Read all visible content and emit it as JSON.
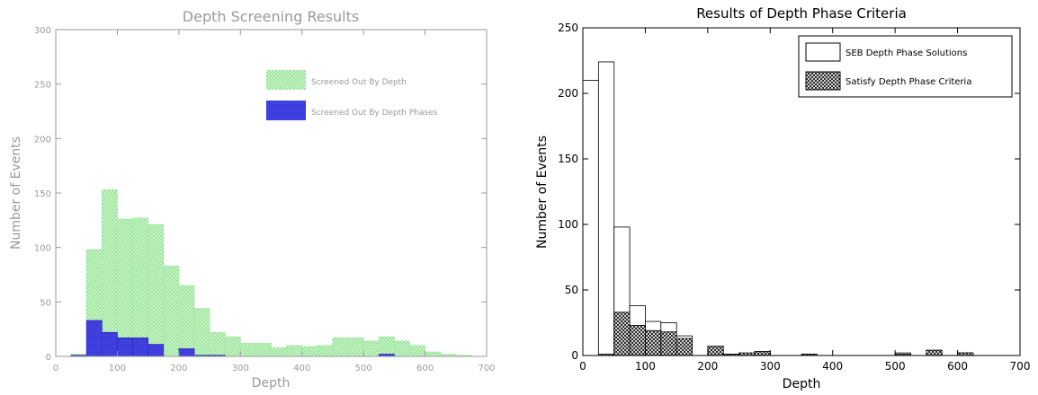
{
  "chart_data": [
    {
      "type": "bar",
      "title": "Depth Screening Results",
      "xlabel": "Depth",
      "ylabel": "Number of Events",
      "xlim": [
        0,
        700
      ],
      "ylim": [
        0,
        300
      ],
      "xticks": [
        "0",
        "100",
        "200",
        "300",
        "400",
        "500",
        "600",
        "700"
      ],
      "yticks": [
        "0",
        "50",
        "100",
        "150",
        "200",
        "250",
        "300"
      ],
      "bin_width": 25,
      "legend": {
        "title": "",
        "position": "top-right"
      },
      "colors": {
        "series1": "#7de07d",
        "series2": "#3b3bdc"
      },
      "series": [
        {
          "name": "Screened Out By Depth",
          "x_start": [
            25,
            50,
            75,
            100,
            125,
            150,
            175,
            200,
            225,
            250,
            275,
            300,
            325,
            350,
            375,
            400,
            425,
            450,
            475,
            500,
            525,
            550,
            575,
            600,
            625,
            650
          ],
          "values": [
            2,
            98,
            153,
            126,
            127,
            121,
            83,
            65,
            44,
            22,
            18,
            12,
            12,
            8,
            10,
            9,
            10,
            17,
            17,
            14,
            18,
            14,
            10,
            4,
            2,
            1
          ]
        },
        {
          "name": "Screened Out By Depth Phases",
          "x_start": [
            25,
            50,
            75,
            100,
            125,
            150,
            175,
            200,
            225,
            250,
            275,
            300,
            325,
            350,
            375,
            400,
            425,
            450,
            475,
            500,
            525,
            550,
            575,
            600,
            625,
            650
          ],
          "values": [
            1,
            33,
            22,
            17,
            17,
            11,
            0,
            7,
            1,
            1,
            0,
            0,
            0,
            0,
            0,
            0,
            0,
            0,
            0,
            0,
            2,
            0,
            0,
            0,
            0,
            0
          ]
        }
      ]
    },
    {
      "type": "bar",
      "title": "Results of Depth Phase Criteria",
      "xlabel": "Depth",
      "ylabel": "Number of Events",
      "xlim": [
        0,
        700
      ],
      "ylim": [
        0,
        250
      ],
      "xticks": [
        "0",
        "100",
        "200",
        "300",
        "400",
        "500",
        "600",
        "700"
      ],
      "yticks": [
        "0",
        "50",
        "100",
        "150",
        "200",
        "250"
      ],
      "bin_width": 25,
      "legend": {
        "position": "top-right"
      },
      "series": [
        {
          "name": "SEB Depth Phase Solutions",
          "x_start": [
            0,
            25,
            50,
            75,
            100,
            125,
            150,
            175,
            200,
            225,
            250,
            275,
            300,
            325,
            350,
            375,
            400,
            425,
            450,
            475,
            500,
            525,
            550,
            575,
            600,
            625,
            650
          ],
          "values": [
            210,
            224,
            98,
            38,
            26,
            25,
            15,
            0,
            7,
            1,
            1,
            3,
            0,
            0,
            1,
            0,
            0,
            0,
            0,
            0,
            2,
            0,
            4,
            0,
            2,
            0,
            0
          ]
        },
        {
          "name": "Satisfy Depth Phase Criteria",
          "x_start": [
            0,
            25,
            50,
            75,
            100,
            125,
            150,
            175,
            200,
            225,
            250,
            275,
            300,
            325,
            350,
            375,
            400,
            425,
            450,
            475,
            500,
            525,
            550,
            575,
            600,
            625,
            650
          ],
          "values": [
            0,
            1,
            33,
            23,
            19,
            18,
            13,
            0,
            7,
            1,
            2,
            3,
            0,
            0,
            1,
            0,
            0,
            0,
            0,
            0,
            1,
            0,
            4,
            0,
            2,
            0,
            0
          ]
        }
      ]
    }
  ]
}
